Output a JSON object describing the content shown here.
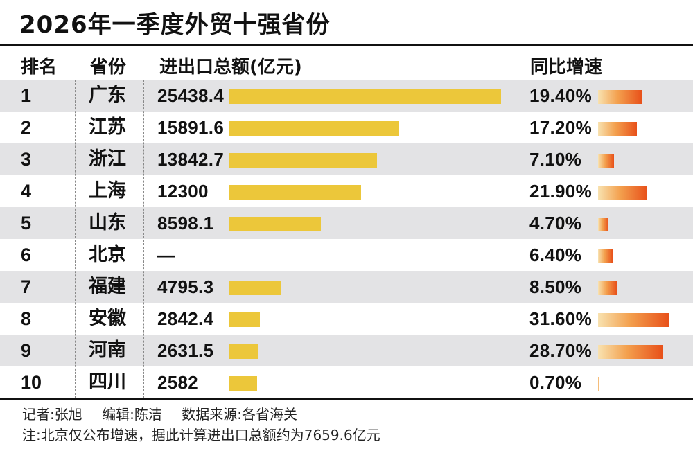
{
  "title": "2026年一季度外贸十强省份",
  "headers": {
    "rank": "排名",
    "province": "省份",
    "total": "进出口总额(亿元)",
    "growth": "同比增速"
  },
  "chart_data": {
    "type": "table",
    "columns": [
      "排名",
      "省份",
      "进出口总额(亿元)",
      "同比增速"
    ],
    "rows": [
      {
        "rank": "1",
        "province": "广东",
        "total_label": "25438.4",
        "total": 25438.4,
        "growth_label": "19.40%",
        "growth": 19.4
      },
      {
        "rank": "2",
        "province": "江苏",
        "total_label": "15891.6",
        "total": 15891.6,
        "growth_label": "17.20%",
        "growth": 17.2
      },
      {
        "rank": "3",
        "province": "浙江",
        "total_label": "13842.7",
        "total": 13842.7,
        "growth_label": "7.10%",
        "growth": 7.1
      },
      {
        "rank": "4",
        "province": "上海",
        "total_label": "12300",
        "total": 12300,
        "growth_label": "21.90%",
        "growth": 21.9
      },
      {
        "rank": "5",
        "province": "山东",
        "total_label": "8598.1",
        "total": 8598.1,
        "growth_label": "4.70%",
        "growth": 4.7
      },
      {
        "rank": "6",
        "province": "北京",
        "total_label": "—",
        "total": null,
        "growth_label": "6.40%",
        "growth": 6.4
      },
      {
        "rank": "7",
        "province": "福建",
        "total_label": "4795.3",
        "total": 4795.3,
        "growth_label": "8.50%",
        "growth": 8.5
      },
      {
        "rank": "8",
        "province": "安徽",
        "total_label": "2842.4",
        "total": 2842.4,
        "growth_label": "31.60%",
        "growth": 31.6
      },
      {
        "rank": "9",
        "province": "河南",
        "total_label": "2631.5",
        "total": 2631.5,
        "growth_label": "28.70%",
        "growth": 28.7
      },
      {
        "rank": "10",
        "province": "四川",
        "total_label": "2582",
        "total": 2582,
        "growth_label": "0.70%",
        "growth": 0.7
      }
    ]
  },
  "colors": {
    "total_bar": "#ecc73a",
    "growth_bar_start": "#f8e2b0",
    "growth_bar_end": "#e8511a",
    "shaded_row": "#e3e3e5"
  },
  "footer": {
    "reporter": "记者:张旭",
    "editor": "编辑:陈洁",
    "source": "数据来源:各省海关",
    "note": "注:北京仅公布增速，据此计算进出口总额约为7659.6亿元"
  }
}
